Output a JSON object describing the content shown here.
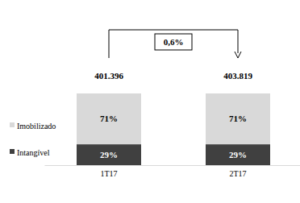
{
  "chart_data": {
    "type": "bar",
    "stacked": true,
    "categories": [
      "1T17",
      "2T17"
    ],
    "series": [
      {
        "name": "Imobilizado",
        "color": "#d9d9d9",
        "values": [
          71,
          71
        ],
        "value_labels": [
          "71%",
          "71%"
        ]
      },
      {
        "name": "Intangível",
        "color": "#404040",
        "values": [
          29,
          29
        ],
        "value_labels": [
          "29%",
          "29%"
        ]
      }
    ],
    "totals": [
      401396,
      403819
    ],
    "total_labels": [
      "401.396",
      "403.819"
    ],
    "annotation": "0,6%",
    "ylim": [
      0,
      100
    ],
    "tick_labels": "x",
    "data_labels": true,
    "legend": "left"
  }
}
